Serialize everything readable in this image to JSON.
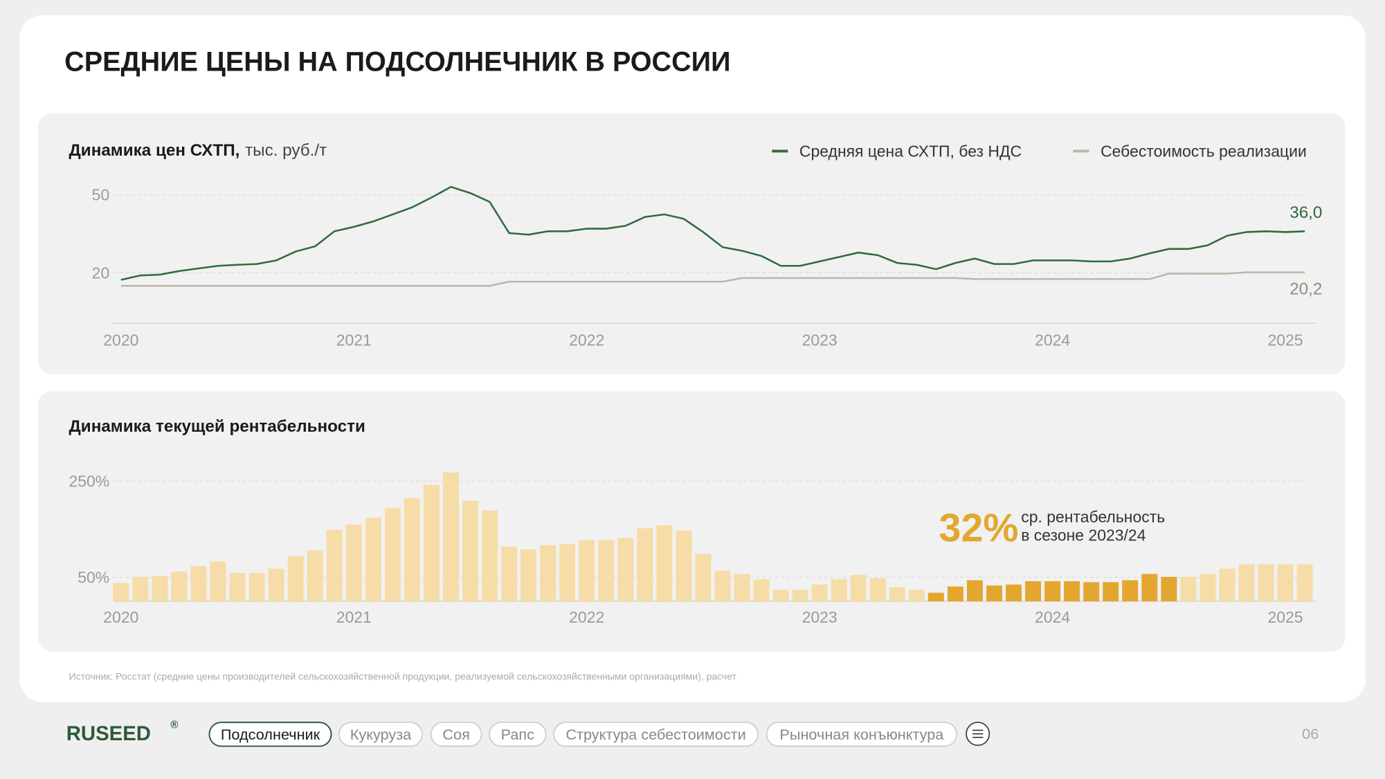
{
  "header": {
    "title": "СРЕДНИЕ ЦЕНЫ НА ПОДСОЛНЕЧНИК В РОССИИ"
  },
  "chart_data": [
    {
      "type": "line",
      "title": "Динамика цен СХТП,",
      "unit": "тыс. руб./т",
      "categories": [
        "2020",
        null,
        null,
        null,
        null,
        null,
        null,
        null,
        null,
        null,
        null,
        null,
        "2021",
        null,
        null,
        null,
        null,
        null,
        null,
        null,
        null,
        null,
        null,
        null,
        "2022",
        null,
        null,
        null,
        null,
        null,
        null,
        null,
        null,
        null,
        null,
        null,
        "2023",
        null,
        null,
        null,
        null,
        null,
        null,
        null,
        null,
        null,
        null,
        null,
        "2024",
        null,
        null,
        null,
        null,
        null,
        null,
        null,
        null,
        null,
        null,
        null,
        "2025",
        null
      ],
      "series": [
        {
          "name": "Средняя цена СХТП, без НДС",
          "color": "#2e6b3f",
          "end_label": "36,0",
          "values": [
            17.3,
            19.0,
            19.3,
            20.7,
            21.7,
            22.7,
            23.1,
            23.4,
            24.8,
            28.2,
            30.2,
            36.0,
            37.7,
            39.8,
            42.5,
            45.2,
            49.0,
            53.1,
            50.7,
            47.3,
            35.3,
            34.7,
            36.0,
            36.0,
            37.0,
            37.0,
            38.1,
            41.5,
            42.5,
            40.8,
            35.7,
            29.9,
            28.5,
            26.5,
            22.7,
            22.7,
            24.4,
            26.1,
            27.8,
            26.8,
            23.8,
            23.1,
            21.4,
            23.8,
            25.5,
            23.4,
            23.4,
            24.8,
            24.8,
            24.8,
            24.4,
            24.4,
            25.5,
            27.5,
            29.2,
            29.2,
            30.6,
            34.3,
            35.7,
            36.0,
            35.7,
            36.0
          ]
        },
        {
          "name": "Себестоимость реализации",
          "color": "#bab7a8",
          "end_label": "20,2",
          "values": [
            15.0,
            15.0,
            15.0,
            15.0,
            15.0,
            15.0,
            15.0,
            15.0,
            15.0,
            15.0,
            15.0,
            15.0,
            15.0,
            15.0,
            15.0,
            15.0,
            15.0,
            15.0,
            15.0,
            15.0,
            16.6,
            16.6,
            16.6,
            16.6,
            16.6,
            16.6,
            16.6,
            16.6,
            16.6,
            16.6,
            16.6,
            16.6,
            18.0,
            18.0,
            18.0,
            18.0,
            18.0,
            18.0,
            18.0,
            18.0,
            18.0,
            18.0,
            18.0,
            18.0,
            17.6,
            17.6,
            17.6,
            17.6,
            17.6,
            17.6,
            17.6,
            17.6,
            17.6,
            17.6,
            19.7,
            19.7,
            19.7,
            19.7,
            20.2,
            20.2,
            20.2,
            20.2
          ]
        }
      ],
      "ylim": [
        0,
        57
      ],
      "yticks": [
        20,
        50
      ],
      "grid": true
    },
    {
      "type": "bar",
      "title": "Динамика текущей рентабельности",
      "categories": [
        "2020",
        null,
        null,
        null,
        null,
        null,
        null,
        null,
        null,
        null,
        null,
        null,
        "2021",
        null,
        null,
        null,
        null,
        null,
        null,
        null,
        null,
        null,
        null,
        null,
        "2022",
        null,
        null,
        null,
        null,
        null,
        null,
        null,
        null,
        null,
        null,
        null,
        "2023",
        null,
        null,
        null,
        null,
        null,
        null,
        null,
        null,
        null,
        null,
        null,
        "2024",
        null,
        null,
        null,
        null,
        null,
        null,
        null,
        null,
        null,
        null,
        null,
        "2025",
        null
      ],
      "values": [
        38,
        51,
        53,
        62,
        73,
        83,
        59,
        59,
        68,
        94,
        106,
        149,
        160,
        174,
        194,
        215,
        242,
        268,
        209,
        189,
        114,
        108,
        117,
        119,
        127,
        127,
        132,
        152,
        158,
        147,
        99,
        64,
        57,
        46,
        24,
        24,
        35,
        46,
        55,
        48,
        29,
        24,
        18,
        31,
        44,
        33,
        35,
        42,
        42,
        42,
        40,
        40,
        44,
        57,
        51,
        51,
        57,
        68,
        77,
        77,
        77,
        77
      ],
      "colors": [
        "#f6dca6",
        "#f6dca6",
        "#f6dca6",
        "#f6dca6",
        "#f6dca6",
        "#f6dca6",
        "#f6dca6",
        "#f6dca6",
        "#f6dca6",
        "#f6dca6",
        "#f6dca6",
        "#f6dca6",
        "#f6dca6",
        "#f6dca6",
        "#f6dca6",
        "#f6dca6",
        "#f6dca6",
        "#f6dca6",
        "#f6dca6",
        "#f6dca6",
        "#f6dca6",
        "#f6dca6",
        "#f6dca6",
        "#f6dca6",
        "#f6dca6",
        "#f6dca6",
        "#f6dca6",
        "#f6dca6",
        "#f6dca6",
        "#f6dca6",
        "#f6dca6",
        "#f6dca6",
        "#f6dca6",
        "#f6dca6",
        "#f6dca6",
        "#f6dca6",
        "#f6dca6",
        "#f6dca6",
        "#f6dca6",
        "#f6dca6",
        "#f6dca6",
        "#f6dca6",
        "#e3a730",
        "#e3a730",
        "#e3a730",
        "#e3a730",
        "#e3a730",
        "#e3a730",
        "#e3a730",
        "#e3a730",
        "#e3a730",
        "#e3a730",
        "#e3a730",
        "#e3a730",
        "#e3a730",
        "#f6dca6",
        "#f6dca6",
        "#f6dca6",
        "#f6dca6",
        "#f6dca6",
        "#f6dca6",
        "#f6dca6"
      ],
      "ylim": [
        0,
        290
      ],
      "yticks": [
        {
          "value": 250,
          "label": "250%"
        },
        {
          "value": 50,
          "label": "50%"
        }
      ],
      "grid": true,
      "annotation": {
        "value": 32,
        "label": "32%",
        "lines": [
          "ср. рентабельность",
          "в сезоне 2023/24"
        ]
      }
    }
  ],
  "source": "Источник: Росстат (средние цены производителей сельскохозяйственной продукции, реализуемой сельскохозяйственными организациями), расчет",
  "nav": {
    "logo": "RUSEED",
    "logo_mark": "®",
    "tabs": [
      "Подсолнечник",
      "Кукуруза",
      "Соя",
      "Рапс",
      "Структура себестоимости",
      "Рыночная конъюнктура"
    ],
    "page": "06"
  }
}
